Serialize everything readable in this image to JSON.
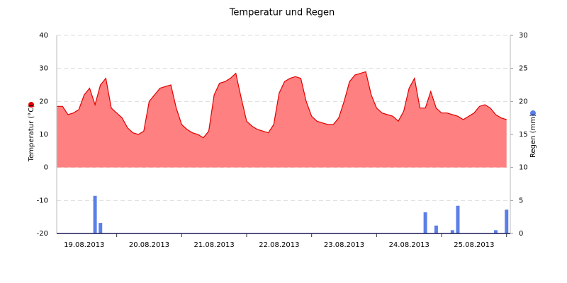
{
  "chart_data": {
    "type": "combo",
    "title": "Temperatur und Regen",
    "y_label": "Temperatur (°C)",
    "y2_label": "Regen (mm)",
    "categories": [
      null,
      null,
      null,
      null,
      null,
      "19.08.2013",
      null,
      null,
      null,
      null,
      null,
      null,
      null,
      null,
      null,
      null,
      null,
      "20.08.2013",
      null,
      null,
      null,
      null,
      null,
      null,
      null,
      null,
      null,
      null,
      null,
      "21.08.2013",
      null,
      null,
      null,
      null,
      null,
      null,
      null,
      null,
      null,
      null,
      null,
      "22.08.2013",
      null,
      null,
      null,
      null,
      null,
      null,
      null,
      null,
      null,
      null,
      null,
      "23.08.2013",
      null,
      null,
      null,
      null,
      null,
      null,
      null,
      null,
      null,
      null,
      null,
      "24.08.2013",
      null,
      null,
      null,
      null,
      null,
      null,
      null,
      null,
      null,
      null,
      null,
      "25.08.2013",
      null,
      null,
      null,
      null,
      null,
      null
    ],
    "series": [
      {
        "name": "Temperatur (°C)",
        "type": "area",
        "color": "#ff8080",
        "line_color": "#e00000",
        "values": [
          18.5,
          18.5,
          16,
          16.5,
          17.5,
          22,
          24,
          19,
          25,
          27,
          18,
          16.5,
          15,
          12,
          10.5,
          10,
          11,
          20,
          22,
          24,
          24.5,
          25,
          18,
          13,
          11.5,
          10.5,
          10,
          9,
          11,
          22,
          25.5,
          26,
          27,
          28.5,
          21,
          14,
          12.5,
          11.5,
          11,
          10.5,
          13,
          22.5,
          26,
          27,
          27.5,
          27,
          20,
          15.5,
          14,
          13.5,
          13,
          13,
          15,
          20,
          26,
          28,
          28.5,
          29,
          22,
          18,
          16.5,
          16,
          15.5,
          14,
          17,
          24,
          27,
          18,
          18,
          23,
          18,
          16.5,
          16.5,
          16,
          15.5,
          14.5,
          15.5,
          16.5,
          18.5,
          19,
          18,
          16,
          15,
          14.5
        ]
      },
      {
        "name": "Regen (mm)",
        "type": "bar",
        "axis": "y2",
        "color": "#5b7fe8",
        "values": [
          0,
          0,
          0,
          0,
          0,
          0,
          0,
          5.7,
          1.6,
          0,
          0,
          0,
          0,
          0,
          0,
          0,
          0,
          0,
          0,
          0,
          0,
          0,
          0,
          0,
          0,
          0,
          0,
          0,
          0,
          0,
          0,
          0,
          0,
          0,
          0,
          0,
          0,
          0,
          0,
          0,
          0,
          0,
          0,
          0,
          0,
          0,
          0,
          0,
          0,
          0,
          0,
          0,
          0,
          0,
          0,
          0,
          0,
          0,
          0,
          0,
          0,
          0,
          0,
          0,
          0,
          0,
          0,
          0,
          3.2,
          0,
          1.2,
          0,
          0,
          0.5,
          4.2,
          0,
          0,
          0,
          0,
          0,
          0,
          0.5,
          0,
          3.6
        ]
      }
    ],
    "ylim": [
      -20,
      40
    ],
    "yticks": [
      -20,
      -10,
      0,
      10,
      20,
      30,
      40
    ],
    "y2lim": [
      0,
      30
    ],
    "y2ticks": [
      0,
      5,
      10,
      15,
      20,
      25,
      30
    ],
    "grid": true
  }
}
